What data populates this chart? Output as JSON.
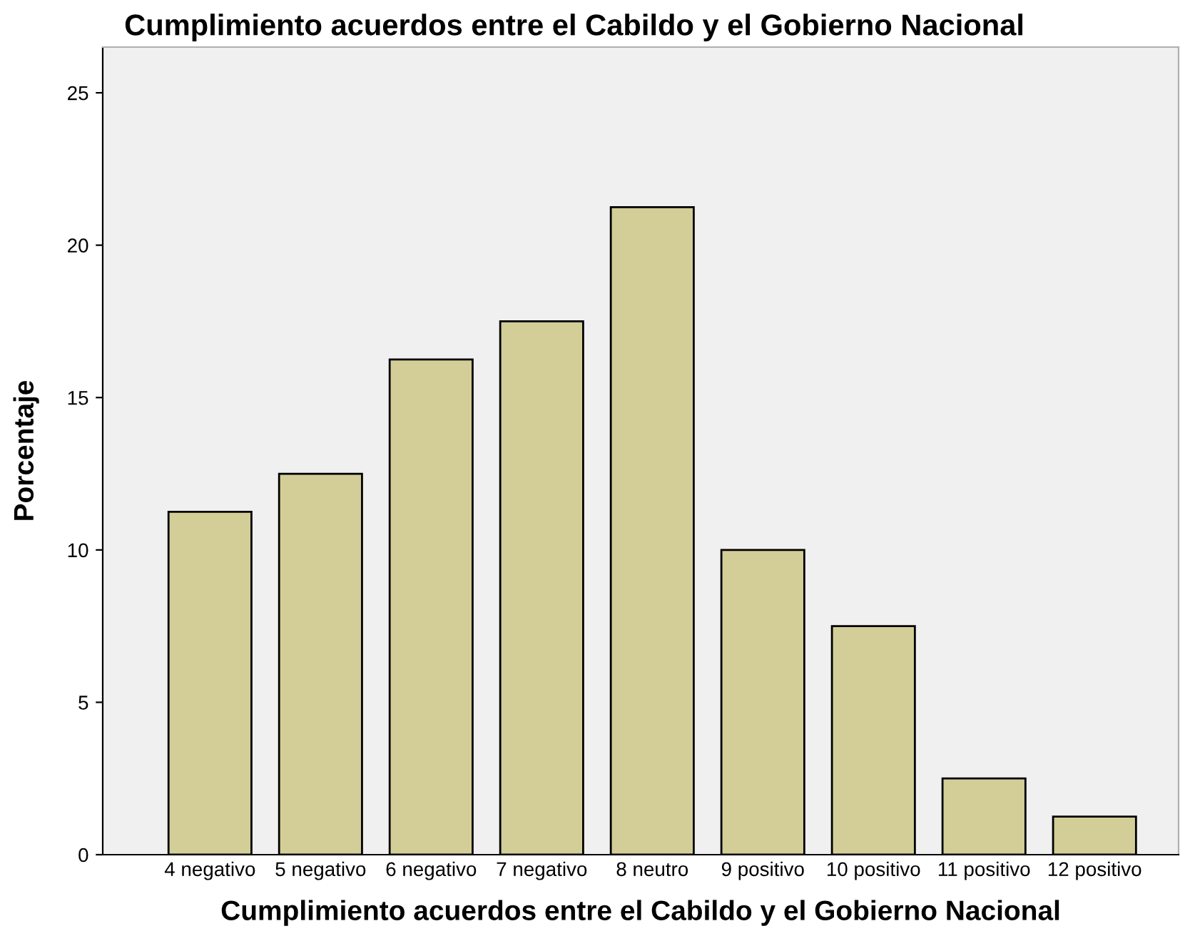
{
  "chart_data": {
    "type": "bar",
    "title": "Cumplimiento acuerdos entre el Cabildo y el Gobierno Nacional",
    "xlabel": "Cumplimiento acuerdos entre el Cabildo y el Gobierno Nacional",
    "ylabel": "Porcentaje",
    "categories": [
      "4 negativo",
      "5 negativo",
      "6 negativo",
      "7 negativo",
      "8 neutro",
      "9 positivo",
      "10 positivo",
      "11 positivo",
      "12 positivo"
    ],
    "values": [
      11.25,
      12.5,
      16.25,
      17.5,
      21.25,
      10,
      7.5,
      2.5,
      1.25
    ],
    "color": "#d3ce97",
    "ylim": [
      0,
      26.5
    ],
    "yticks": [
      0,
      5,
      10,
      15,
      20,
      25
    ],
    "grid": false,
    "legend": false
  }
}
